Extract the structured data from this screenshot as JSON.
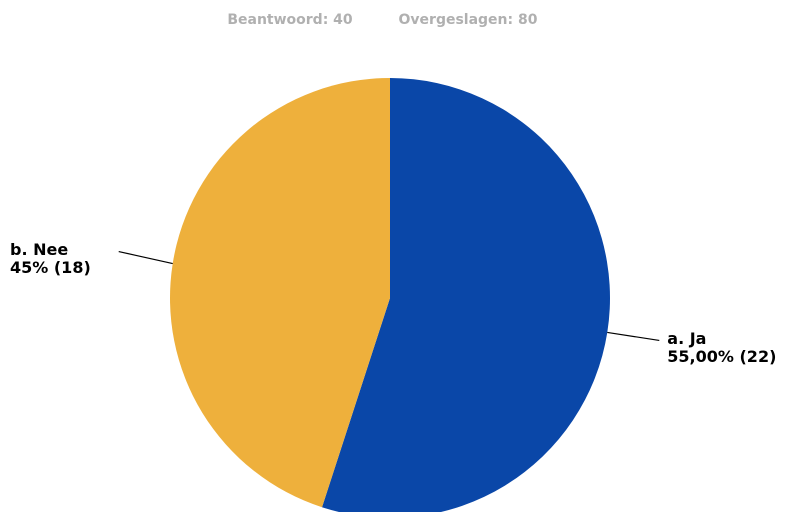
{
  "chart_data": {
    "type": "pie",
    "title": "Beantwoord: 40",
    "subtitle": "Overgeslagen: 80",
    "categories": [
      "a. Ja",
      "b. Nee"
    ],
    "values": [
      55,
      45
    ],
    "value_labels": [
      "55,00% (22)",
      "45% (18)"
    ],
    "colors": [
      "#0a47a8",
      "#eeb03c"
    ]
  }
}
